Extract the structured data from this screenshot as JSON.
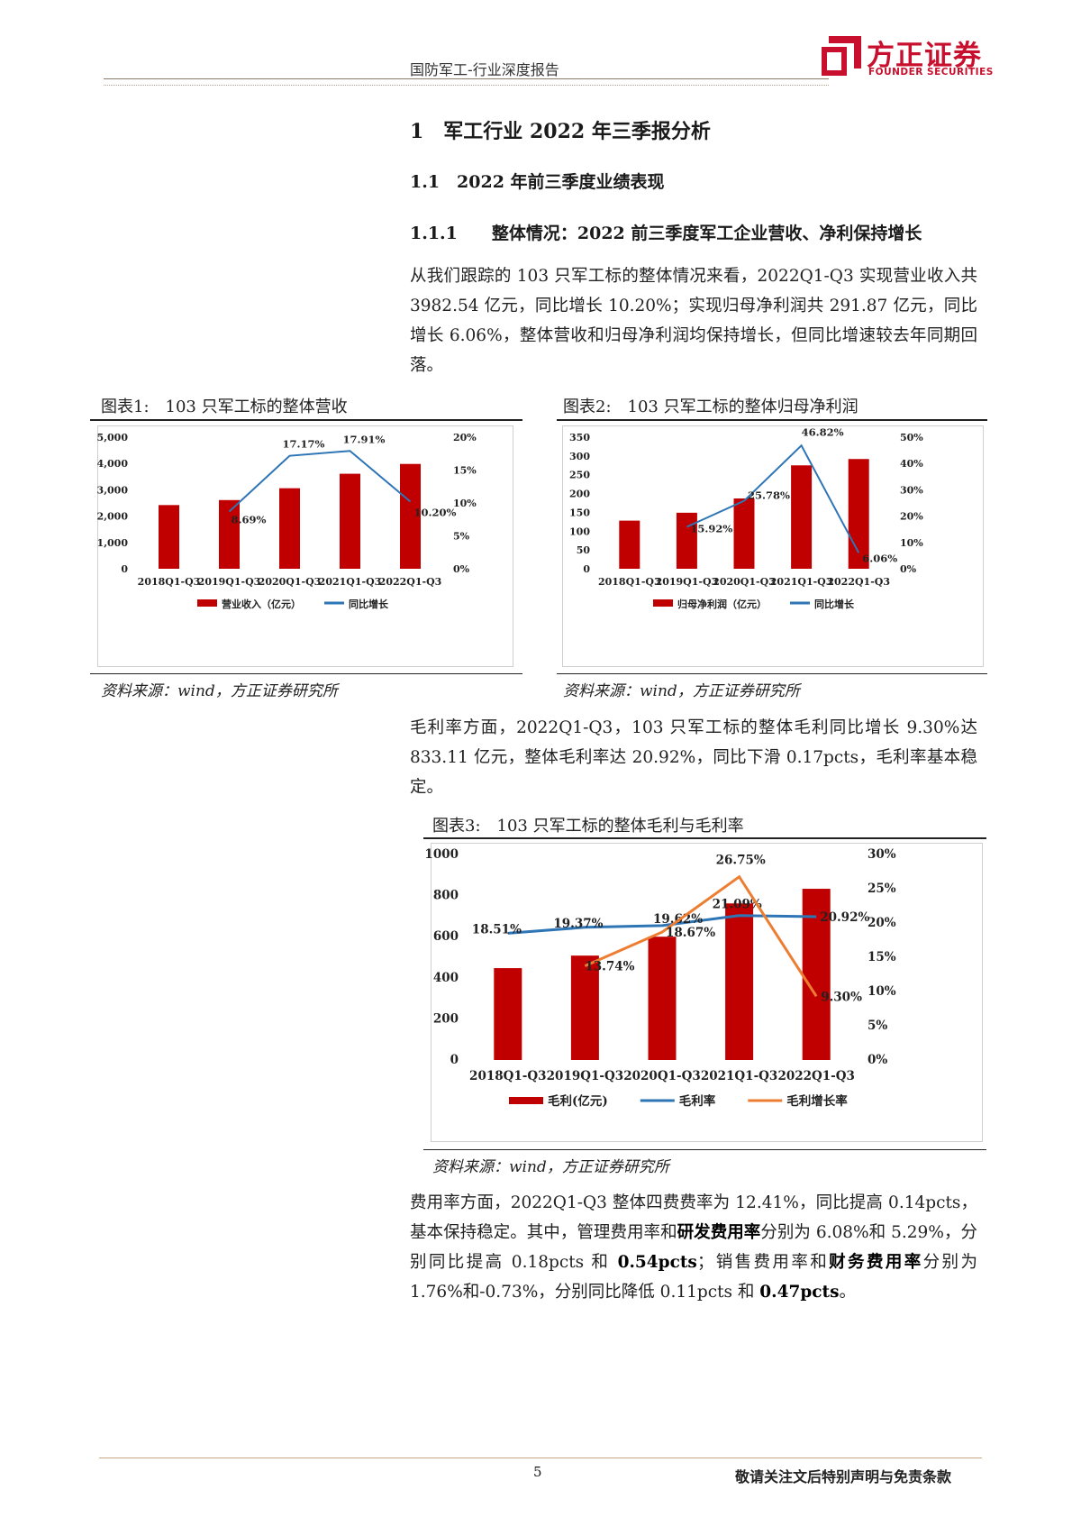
{
  "header": {
    "title": "国防军工-行业深度报告",
    "logo_cn": "方正证券",
    "logo_en": "FOUNDER SECURITIES",
    "brand_color": "#c8102e"
  },
  "headings": {
    "h1": "1　军工行业 2022 年三季报分析",
    "h2": "1.1　2022 年前三季度业绩表现",
    "h3": "1.1.1　　整体情况：2022 前三季度军工企业营收、净利保持增长"
  },
  "paragraphs": {
    "p1": "从我们跟踪的 103 只军工标的整体情况来看，2022Q1-Q3 实现营业收入共 3982.54 亿元，同比增长 10.20%；实现归母净利润共 291.87 亿元，同比增长 6.06%，整体营收和归母净利润均保持增长，但同比增速较去年同期回落。",
    "p2": "毛利率方面，2022Q1-Q3，103 只军工标的整体毛利同比增长 9.30%达 833.11 亿元，整体毛利率达 20.92%，同比下滑 0.17pcts，毛利率基本稳定。",
    "p3_a": "费用率方面，2022Q1-Q3 整体四费费率为 12.41%，同比提高 0.14pcts，基本保持稳定。其中，管理费用率和",
    "p3_b": "研发费用率",
    "p3_c": "分别为 6.08%和 5.29%，分别同比提高 0.18pcts 和 ",
    "p3_d": "0.54pcts",
    "p3_e": "；销售费用率和",
    "p3_f": "财务费用率",
    "p3_g": "分别为 1.76%和-0.73%，分别同比降低 0.11pcts 和 ",
    "p3_h": "0.47pcts",
    "p3_i": "。"
  },
  "figures": {
    "fig1_title": "图表1:　103 只军工标的整体营收",
    "fig2_title": "图表2:　103 只军工标的整体归母净利润",
    "fig3_title": "图表3:　103 只军工标的整体毛利与毛利率",
    "source": "资料来源：wind，方正证券研究所"
  },
  "colors": {
    "bar": "#c00000",
    "line_blue": "#2e75b6",
    "line_orange": "#ed7d31"
  },
  "chart_data": [
    {
      "type": "bar",
      "categories": [
        "2018Q1-Q3",
        "2019Q1-Q3",
        "2020Q1-Q3",
        "2021Q1-Q3",
        "2022Q1-Q3"
      ],
      "series": [
        {
          "name": "营业收入（亿元）",
          "type": "bar",
          "axis": "left",
          "values": [
            2420,
            2610,
            3060,
            3610,
            3982.54
          ]
        },
        {
          "name": "同比增长",
          "type": "line",
          "axis": "right",
          "values": [
            null,
            8.69,
            17.17,
            17.91,
            10.2
          ],
          "labels": [
            "",
            "8.69%",
            "17.17%",
            "17.91%",
            "10.20%"
          ]
        }
      ],
      "ylim": [
        0,
        5000
      ],
      "yticks": [
        "0",
        "1,000",
        "2,000",
        "3,000",
        "4,000",
        "5,000"
      ],
      "y2lim": [
        0,
        20
      ],
      "y2ticks": [
        "0%",
        "5%",
        "10%",
        "15%",
        "20%"
      ],
      "legend": "bottom"
    },
    {
      "type": "bar",
      "categories": [
        "2018Q1-Q3",
        "2019Q1-Q3",
        "2020Q1-Q3",
        "2021Q1-Q3",
        "2022Q1-Q3"
      ],
      "series": [
        {
          "name": "归母净利润（亿元）",
          "type": "bar",
          "axis": "left",
          "values": [
            128,
            149,
            187,
            275,
            291.87
          ]
        },
        {
          "name": "同比增长",
          "type": "line",
          "axis": "right",
          "values": [
            null,
            15.92,
            25.78,
            46.82,
            6.06
          ],
          "labels": [
            "",
            "15.92%",
            "25.78%",
            "46.82%",
            "6.06%"
          ]
        }
      ],
      "ylim": [
        0,
        350
      ],
      "yticks": [
        "0",
        "50",
        "100",
        "150",
        "200",
        "250",
        "300",
        "350"
      ],
      "y2lim": [
        0,
        50
      ],
      "y2ticks": [
        "0%",
        "10%",
        "20%",
        "30%",
        "40%",
        "50%"
      ],
      "legend": "bottom"
    },
    {
      "type": "bar",
      "categories": [
        "2018Q1-Q3",
        "2019Q1-Q3",
        "2020Q1-Q3",
        "2021Q1-Q3",
        "2022Q1-Q3"
      ],
      "series": [
        {
          "name": "毛利(亿元)",
          "type": "bar",
          "axis": "left",
          "values": [
            447,
            508,
            600,
            762,
            833.11
          ]
        },
        {
          "name": "毛利率",
          "type": "line",
          "axis": "right",
          "color": "blue",
          "values": [
            18.51,
            19.37,
            19.62,
            21.09,
            20.92
          ],
          "labels": [
            "18.51%",
            "19.37%",
            "19.62%",
            "21.09%",
            "20.92%"
          ]
        },
        {
          "name": "毛利增长率",
          "type": "line",
          "axis": "right",
          "color": "orange",
          "values": [
            null,
            13.74,
            18.67,
            26.75,
            9.3
          ],
          "labels": [
            "",
            "13.74%",
            "18.67%",
            "26.75%",
            "9.30%"
          ]
        }
      ],
      "ylim": [
        0,
        1000
      ],
      "yticks": [
        "0",
        "200",
        "400",
        "600",
        "800",
        "1000"
      ],
      "y2lim": [
        0,
        30
      ],
      "y2ticks": [
        "0%",
        "5%",
        "10%",
        "15%",
        "20%",
        "25%",
        "30%"
      ],
      "legend": "bottom"
    }
  ],
  "footer": {
    "page": "5",
    "disclaimer": "敬请关注文后特别声明与免责条款"
  }
}
